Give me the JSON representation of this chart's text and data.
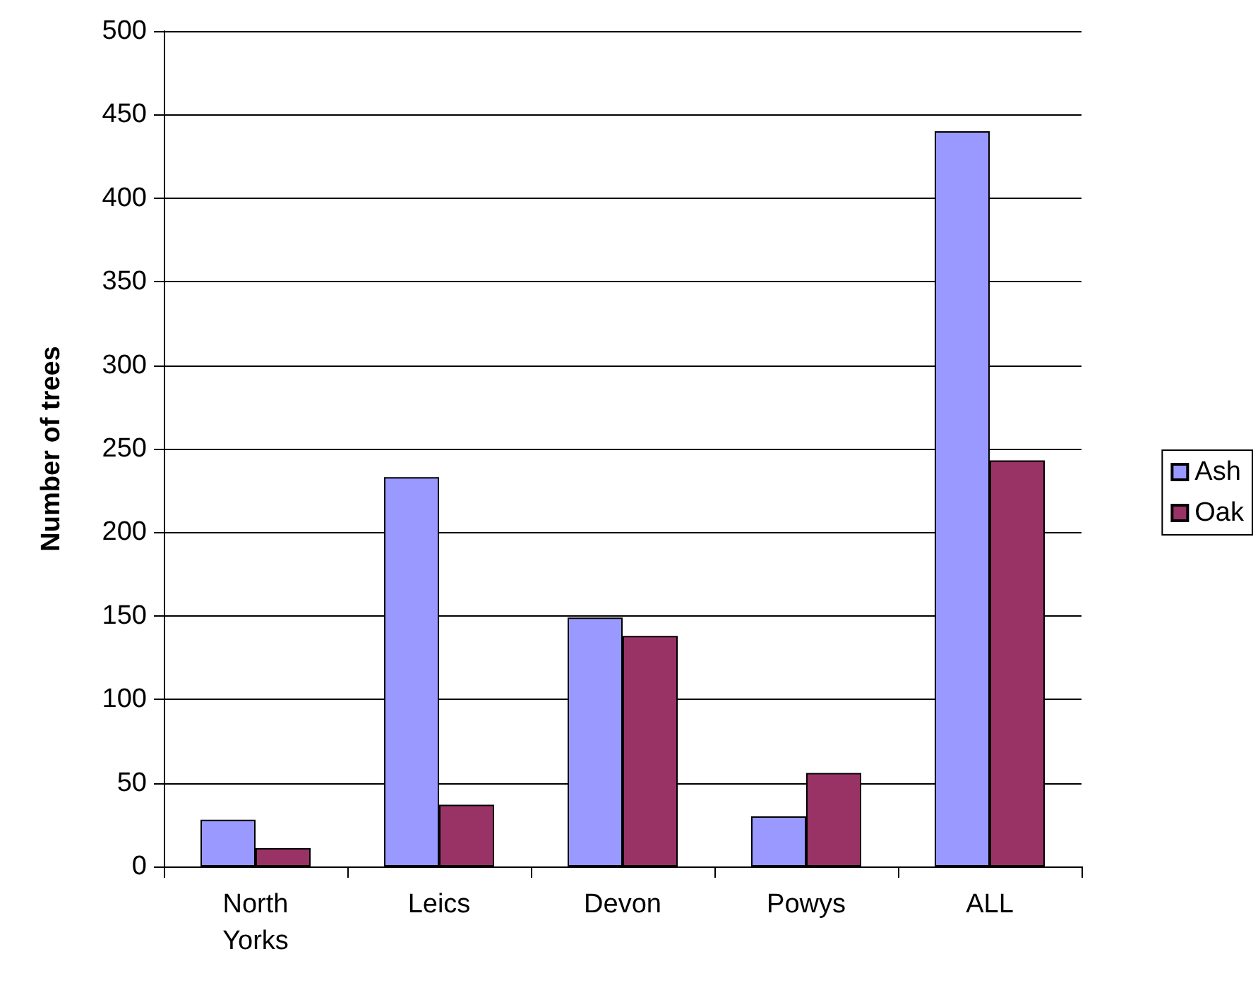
{
  "chart_data": {
    "type": "bar",
    "ylabel": "Number of trees",
    "categories": [
      "North Yorks",
      "Leics",
      "Devon",
      "Powys",
      "ALL"
    ],
    "series": [
      {
        "name": "Ash",
        "color": "#9999ff",
        "values": [
          28,
          233,
          149,
          30,
          440
        ]
      },
      {
        "name": "Oak",
        "color": "#993366",
        "values": [
          11,
          37,
          138,
          56,
          243
        ]
      }
    ],
    "ylim": [
      0,
      500
    ],
    "yticks": [
      0,
      50,
      100,
      150,
      200,
      250,
      300,
      350,
      400,
      450,
      500
    ],
    "grid": "y",
    "legend": "right"
  }
}
